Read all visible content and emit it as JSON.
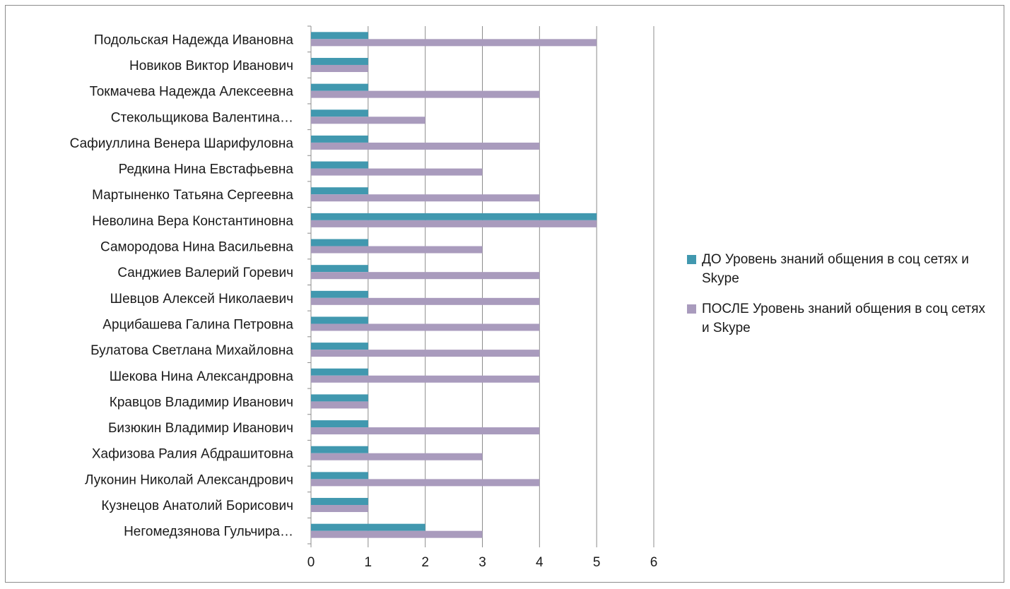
{
  "chart_data": {
    "type": "bar",
    "orientation": "horizontal",
    "categories": [
      "Подольская Надежда Ивановна",
      "Новиков Виктор Иванович",
      "Токмачева Надежда Алексеевна",
      "Стекольщикова Валентина…",
      "Сафиуллина Венера Шарифуловна",
      "Редкина Нина Евстафьевна",
      "Мартыненко Татьяна Сергеевна",
      "Неволина Вера Константиновна",
      "Самородова Нина Васильевна",
      "Санджиев Валерий Горевич",
      "Шевцов Алексей Николаевич",
      "Арцибашева Галина Петровна",
      "Булатова Светлана Михайловна",
      "Шекова Нина Александровна",
      "Кравцов Владимир Иванович",
      "Бизюкин Владимир Иванович",
      "Хафизова Ралия Абдрашитовна",
      "Луконин Николай Александрович",
      "Кузнецов Анатолий Борисович",
      "Негомедзянова Гульчира…"
    ],
    "series": [
      {
        "name": "ДО Уровень знаний общения в соц сетях и Skype",
        "color": "#4198af",
        "values": [
          1,
          1,
          1,
          1,
          1,
          1,
          1,
          5,
          1,
          1,
          1,
          1,
          1,
          1,
          1,
          1,
          1,
          1,
          1,
          2
        ]
      },
      {
        "name": "ПОСЛЕ Уровень знаний общения в соц сетях и Skype",
        "color": "#a99bbd",
        "values": [
          5,
          1,
          4,
          2,
          4,
          3,
          4,
          5,
          3,
          4,
          4,
          4,
          4,
          4,
          1,
          4,
          3,
          4,
          1,
          3
        ]
      }
    ],
    "xlim": [
      0,
      6
    ],
    "xticks": [
      "0",
      "1",
      "2",
      "3",
      "4",
      "5",
      "6"
    ],
    "grid": true,
    "legend_position": "right"
  }
}
